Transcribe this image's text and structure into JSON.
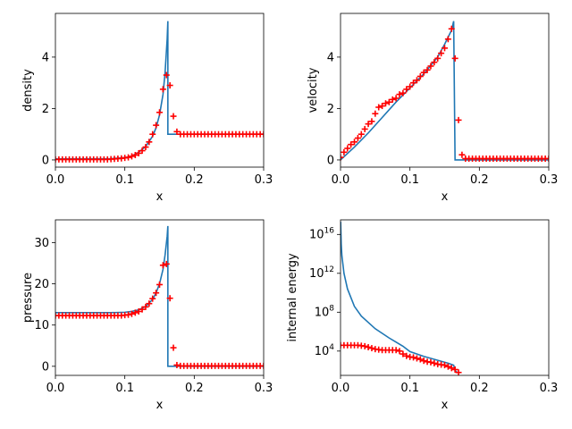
{
  "chart_data": [
    {
      "type": "line",
      "xlabel": "x",
      "ylabel": "density",
      "xlim": [
        0,
        0.3
      ],
      "ylim": [
        -0.28,
        5.7
      ],
      "xticks": [
        0.0,
        0.1,
        0.2,
        0.3
      ],
      "xtick_labels": [
        "0.0",
        "0.1",
        "0.2",
        "0.3"
      ],
      "yticks": [
        0,
        2,
        4
      ],
      "ytick_labels": [
        "0",
        "2",
        "4"
      ],
      "yscale": "linear",
      "grid": false,
      "series": [
        {
          "kind": "line",
          "color": "#1f77b4",
          "x": [
            0,
            0.08,
            0.1,
            0.11,
            0.12,
            0.13,
            0.14,
            0.145,
            0.15,
            0.155,
            0.158,
            0.161,
            0.162,
            0.162,
            0.3
          ],
          "y": [
            0.04,
            0.05,
            0.09,
            0.15,
            0.3,
            0.52,
            0.92,
            1.25,
            1.75,
            2.55,
            3.4,
            4.7,
            5.4,
            1.0,
            1.0
          ]
        },
        {
          "kind": "scatter",
          "marker": "+",
          "color": "#ff0000",
          "x": [
            0.0,
            0.005,
            0.01,
            0.015,
            0.02,
            0.025,
            0.03,
            0.035,
            0.04,
            0.045,
            0.05,
            0.055,
            0.06,
            0.065,
            0.07,
            0.075,
            0.08,
            0.085,
            0.09,
            0.095,
            0.1,
            0.105,
            0.11,
            0.115,
            0.12,
            0.125,
            0.13,
            0.135,
            0.14,
            0.145,
            0.15,
            0.155,
            0.16,
            0.165,
            0.17,
            0.175,
            0.18,
            0.185,
            0.19,
            0.195,
            0.2,
            0.205,
            0.21,
            0.215,
            0.22,
            0.225,
            0.23,
            0.235,
            0.24,
            0.245,
            0.25,
            0.255,
            0.26,
            0.265,
            0.27,
            0.275,
            0.28,
            0.285,
            0.29,
            0.295,
            0.3
          ],
          "y": [
            0.02,
            0.02,
            0.02,
            0.02,
            0.02,
            0.02,
            0.02,
            0.02,
            0.02,
            0.02,
            0.02,
            0.02,
            0.02,
            0.02,
            0.02,
            0.02,
            0.03,
            0.04,
            0.05,
            0.06,
            0.08,
            0.1,
            0.14,
            0.19,
            0.26,
            0.36,
            0.5,
            0.7,
            1.0,
            1.35,
            1.85,
            2.75,
            3.3,
            2.9,
            1.7,
            1.1,
            1.0,
            1.0,
            1.0,
            1.0,
            1.0,
            1.0,
            1.0,
            1.0,
            1.0,
            1.0,
            1.0,
            1.0,
            1.0,
            1.0,
            1.0,
            1.0,
            1.0,
            1.0,
            1.0,
            1.0,
            1.0,
            1.0,
            1.0,
            1.0,
            1.0
          ]
        }
      ]
    },
    {
      "type": "line",
      "xlabel": "x",
      "ylabel": "velocity",
      "xlim": [
        0,
        0.3
      ],
      "ylim": [
        -0.28,
        5.7
      ],
      "xticks": [
        0.0,
        0.1,
        0.2,
        0.3
      ],
      "xtick_labels": [
        "0.0",
        "0.1",
        "0.2",
        "0.3"
      ],
      "yticks": [
        0,
        2,
        4
      ],
      "ytick_labels": [
        "0",
        "2",
        "4"
      ],
      "yscale": "linear",
      "grid": false,
      "series": [
        {
          "kind": "line",
          "color": "#1f77b4",
          "x": [
            0,
            0.02,
            0.04,
            0.06,
            0.08,
            0.1,
            0.12,
            0.14,
            0.15,
            0.16,
            0.163,
            0.165,
            0.3
          ],
          "y": [
            0.0,
            0.5,
            1.05,
            1.65,
            2.25,
            2.8,
            3.35,
            4.0,
            4.5,
            5.05,
            5.4,
            0.0,
            0.0
          ]
        },
        {
          "kind": "scatter",
          "marker": "+",
          "color": "#ff0000",
          "x": [
            0.0,
            0.005,
            0.01,
            0.015,
            0.02,
            0.025,
            0.03,
            0.035,
            0.04,
            0.045,
            0.05,
            0.055,
            0.06,
            0.065,
            0.07,
            0.075,
            0.08,
            0.085,
            0.09,
            0.095,
            0.1,
            0.105,
            0.11,
            0.115,
            0.12,
            0.125,
            0.13,
            0.135,
            0.14,
            0.145,
            0.15,
            0.155,
            0.16,
            0.165,
            0.17,
            0.175,
            0.18,
            0.185,
            0.19,
            0.195,
            0.2,
            0.205,
            0.21,
            0.215,
            0.22,
            0.225,
            0.23,
            0.235,
            0.24,
            0.245,
            0.25,
            0.255,
            0.26,
            0.265,
            0.27,
            0.275,
            0.28,
            0.285,
            0.29,
            0.295,
            0.3
          ],
          "y": [
            0.1,
            0.3,
            0.45,
            0.6,
            0.7,
            0.85,
            1.0,
            1.2,
            1.4,
            1.5,
            1.8,
            2.05,
            2.1,
            2.2,
            2.25,
            2.35,
            2.4,
            2.55,
            2.6,
            2.75,
            2.85,
            3.0,
            3.1,
            3.25,
            3.4,
            3.5,
            3.65,
            3.8,
            3.95,
            4.15,
            4.35,
            4.7,
            5.1,
            3.95,
            1.55,
            0.2,
            0.05,
            0.05,
            0.05,
            0.05,
            0.05,
            0.05,
            0.05,
            0.05,
            0.05,
            0.05,
            0.05,
            0.05,
            0.05,
            0.05,
            0.05,
            0.05,
            0.05,
            0.05,
            0.05,
            0.05,
            0.05,
            0.05,
            0.05,
            0.05,
            0.05
          ]
        }
      ]
    },
    {
      "type": "line",
      "xlabel": "x",
      "ylabel": "pressure",
      "xlim": [
        0,
        0.3
      ],
      "ylim": [
        -2.2,
        35.5
      ],
      "xticks": [
        0.0,
        0.1,
        0.2,
        0.3
      ],
      "xtick_labels": [
        "0.0",
        "0.1",
        "0.2",
        "0.3"
      ],
      "yticks": [
        0,
        10,
        20,
        30
      ],
      "ytick_labels": [
        "0",
        "10",
        "20",
        "30"
      ],
      "yscale": "linear",
      "grid": false,
      "series": [
        {
          "kind": "line",
          "color": "#1f77b4",
          "x": [
            0,
            0.08,
            0.1,
            0.11,
            0.12,
            0.13,
            0.14,
            0.145,
            0.15,
            0.155,
            0.158,
            0.161,
            0.162,
            0.162,
            0.3
          ],
          "y": [
            13.0,
            13.0,
            13.1,
            13.3,
            13.7,
            14.5,
            16.2,
            17.8,
            20.0,
            23.5,
            27.0,
            31.5,
            34.0,
            0.0,
            0.0
          ]
        },
        {
          "kind": "scatter",
          "marker": "+",
          "color": "#ff0000",
          "x": [
            0.0,
            0.005,
            0.01,
            0.015,
            0.02,
            0.025,
            0.03,
            0.035,
            0.04,
            0.045,
            0.05,
            0.055,
            0.06,
            0.065,
            0.07,
            0.075,
            0.08,
            0.085,
            0.09,
            0.095,
            0.1,
            0.105,
            0.11,
            0.115,
            0.12,
            0.125,
            0.13,
            0.135,
            0.14,
            0.145,
            0.15,
            0.155,
            0.16,
            0.165,
            0.17,
            0.175,
            0.18,
            0.185,
            0.19,
            0.195,
            0.2,
            0.205,
            0.21,
            0.215,
            0.22,
            0.225,
            0.23,
            0.235,
            0.24,
            0.245,
            0.25,
            0.255,
            0.26,
            0.265,
            0.27,
            0.275,
            0.28,
            0.285,
            0.29,
            0.295,
            0.3
          ],
          "y": [
            12.3,
            12.3,
            12.3,
            12.3,
            12.3,
            12.3,
            12.3,
            12.3,
            12.3,
            12.3,
            12.3,
            12.3,
            12.3,
            12.3,
            12.3,
            12.3,
            12.3,
            12.3,
            12.3,
            12.3,
            12.4,
            12.5,
            12.7,
            13.0,
            13.3,
            13.8,
            14.4,
            15.2,
            16.4,
            17.8,
            19.8,
            24.5,
            24.8,
            16.5,
            4.5,
            0.3,
            0.1,
            0.1,
            0.1,
            0.1,
            0.1,
            0.1,
            0.1,
            0.1,
            0.1,
            0.1,
            0.1,
            0.1,
            0.1,
            0.1,
            0.1,
            0.1,
            0.1,
            0.1,
            0.1,
            0.1,
            0.1,
            0.1,
            0.1,
            0.1,
            0.1
          ]
        }
      ]
    },
    {
      "type": "line",
      "xlabel": "x",
      "ylabel": "internal energy",
      "xlim": [
        0,
        0.3
      ],
      "ylim": [
        1.5,
        17.5
      ],
      "xticks": [
        0.0,
        0.1,
        0.2,
        0.3
      ],
      "xtick_labels": [
        "0.0",
        "0.1",
        "0.2",
        "0.3"
      ],
      "yticks": [
        4,
        8,
        12,
        16
      ],
      "ytick_labels": [
        "10^4",
        "10^8",
        "10^12",
        "10^16"
      ],
      "yscale": "log",
      "grid": false,
      "series": [
        {
          "kind": "line",
          "color": "#1f77b4",
          "x": [
            0.0002,
            0.001,
            0.002,
            0.005,
            0.01,
            0.02,
            0.03,
            0.05,
            0.07,
            0.09,
            0.1,
            0.12,
            0.14,
            0.155,
            0.163,
            0.165,
            0.168
          ],
          "y": [
            17.3,
            15.0,
            13.8,
            12.0,
            10.4,
            8.6,
            7.6,
            6.3,
            5.35,
            4.5,
            3.95,
            3.45,
            3.05,
            2.75,
            2.55,
            2.0,
            1.8
          ]
        },
        {
          "kind": "scatter",
          "marker": "+",
          "color": "#ff0000",
          "x": [
            0.0,
            0.005,
            0.01,
            0.015,
            0.02,
            0.025,
            0.03,
            0.035,
            0.04,
            0.045,
            0.05,
            0.055,
            0.06,
            0.065,
            0.07,
            0.075,
            0.08,
            0.085,
            0.09,
            0.095,
            0.1,
            0.105,
            0.11,
            0.115,
            0.12,
            0.125,
            0.13,
            0.135,
            0.14,
            0.145,
            0.15,
            0.155,
            0.16,
            0.165,
            0.17
          ],
          "y": [
            4.6,
            4.6,
            4.6,
            4.6,
            4.6,
            4.6,
            4.55,
            4.5,
            4.4,
            4.3,
            4.2,
            4.15,
            4.1,
            4.1,
            4.1,
            4.1,
            4.1,
            4.0,
            3.7,
            3.5,
            3.4,
            3.35,
            3.25,
            3.15,
            3.0,
            2.9,
            2.85,
            2.75,
            2.65,
            2.6,
            2.55,
            2.4,
            2.25,
            2.1,
            1.8
          ]
        }
      ]
    }
  ]
}
